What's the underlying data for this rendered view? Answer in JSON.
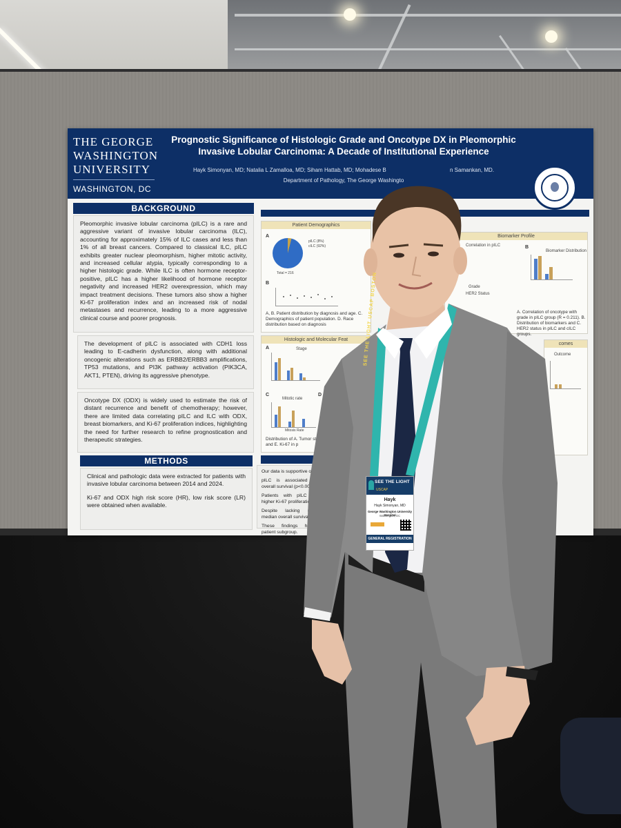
{
  "poster": {
    "university_lines": [
      "THE GEORGE",
      "WASHINGTON",
      "UNIVERSITY"
    ],
    "university_city": "WASHINGTON, DC",
    "title": "Prognostic Significance of Histologic Grade and Oncotype DX in Pleomorphic Invasive Lobular Carcinoma: A Decade of Institutional Experience",
    "authors": "Hayk Simonyan, MD; Natalia L Zamalloa, MD; Siham Hattab, MD; Mohadese B",
    "authors_tail": "n Samankan, MD.",
    "department": "Department of Pathology, The George Washingto",
    "background_heading": "BACKGROUND",
    "background_p1": "Pleomorphic invasive lobular carcinoma (pILC) is a rare and aggressive variant of invasive lobular carcinoma (ILC), accounting for approximately 15% of ILC cases and less than 1% of all breast cancers. Compared to classical ILC, pILC exhibits greater nuclear pleomorphism, higher mitotic activity, and increased cellular atypia, typically corresponding to a higher histologic grade. While ILC is often hormone receptor-positive, pILC has a higher likelihood of hormone receptor negativity and increased HER2 overexpression, which may impact treatment decisions. These tumors also show a higher Ki-67 proliferation index and an increased risk of nodal metastases and recurrence, leading to a more aggressive clinical course and poorer prognosis.",
    "background_p2": "The development of pILC is associated with CDH1 loss leading to E-cadherin dysfunction, along with additional oncogenic alterations such as ERBB2/ERBB3 amplifications, TP53 mutations, and PI3K pathway activation (PIK3CA, AKT1, PTEN), driving its aggressive phenotype.",
    "background_p3": "Oncotype DX (ODX) is widely used to estimate the risk of distant recurrence and benefit of chemotherapy; however, there are limited data correlating pILC and ILC with ODX, breast biomarkers, and Ki-67 proliferation indices, highlighting the need for further research to refine prognostication and therapeutic strategies.",
    "methods_heading": "METHODS",
    "methods_p1": "Clinical and pathologic data were extracted for patients with invasive lobular carcinoma between 2014 and 2024.",
    "methods_p2": "Ki-67 and ODX high risk score (HR), low risk score (LR) were obtained when available.",
    "fig_patient_demographics": "Patient Demographics",
    "fig_biomarker_profile": "Biomarker Profile",
    "fig_histologic": "Histologic and Molecular Feat",
    "fig_outcomes": "comes",
    "label_a": "A",
    "label_b": "B",
    "label_c": "C",
    "label_d": "D",
    "pie_legend_1": "pILC (8%)",
    "pie_legend_2": "cILC (92%)",
    "pie_total": "Total = 216",
    "caption_demo": "A, B. Patient distribution by diagnosis and age. C. Demographics of patient population. D. Race distribution based on diagnosis",
    "correlation_title": "Correlation in pILC",
    "grade_label": "Grade",
    "biomarker_dist": "Biomarker Distribution",
    "her2_status": "HER2 Status",
    "caption_bio": "A. Correlation of oncotype with grade in pILC group (R = 0.211). B. Distribution of biomarkers and C. HER2 status in pILC and cILC groups.",
    "stage_label": "Stage",
    "mitotic_label": "Mitotic rate",
    "mitosis_rate": "Mitosis Rate",
    "caption_hist": "Distribution of A. Tumor stage, B. low and high risk and E. Ki-67 in p",
    "outcome_label": "Outcome",
    "conclusion_1": "Our data is supportive o",
    "conclusion_2": "pILC is associated with overall survival (p<0.00",
    "conclusion_3": "Patients with pILC dem higher Ki-67 proliferatio",
    "conclusion_4": "Despite lacking statisti median overall surviva",
    "conclusion_5": "These findings highligh patient subgroup."
  },
  "badge": {
    "event": "SEE THE LIGHT",
    "sub": "USCAP",
    "first_name": "Hayk",
    "full_name": "Hayk Simonyan, MD",
    "org": "George Washington University Hospital",
    "city": "Washington, DC",
    "registration": "GENERAL REGISTRATION"
  },
  "lanyard": {
    "text": "SEE THE LIGHT USCAP BOSTON"
  },
  "colors": {
    "poster_navy": "#0d2f66",
    "lanyard_teal": "#2fb5ad",
    "suit_gray": "#7d7d7d",
    "tie_navy": "#1b2744"
  }
}
